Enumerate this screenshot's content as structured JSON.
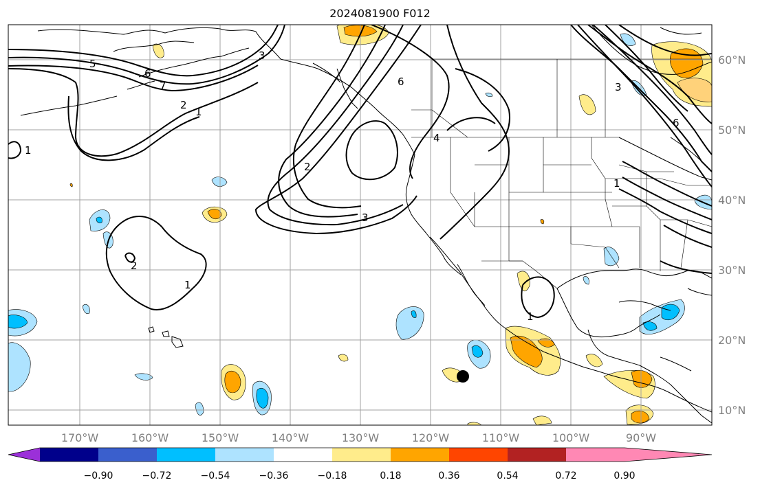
{
  "title": "2024081900 F012",
  "map": {
    "lon_labels": [
      "170°W",
      "160°W",
      "150°W",
      "140°W",
      "130°W",
      "120°W",
      "110°W",
      "100°W",
      "90°W"
    ],
    "lat_labels": [
      "60°N",
      "50°N",
      "40°N",
      "30°N",
      "20°N",
      "10°N"
    ],
    "contour_labels": [
      "5",
      "6",
      "7",
      "2",
      "1",
      "1",
      "2",
      "1",
      "2",
      "3",
      "6",
      "4",
      "3",
      "6",
      "1",
      "3",
      "1"
    ],
    "marker": "storm-center"
  },
  "colorbar": {
    "tick_labels": [
      "−0.90",
      "−0.72",
      "−0.54",
      "−0.36",
      "−0.18",
      "0.18",
      "0.36",
      "0.54",
      "0.72",
      "0.90"
    ],
    "colors": [
      "#9b30d9",
      "#00008b",
      "#3a5fcd",
      "#00bfff",
      "#aee3ff",
      "#ffffff",
      "#ffec8b",
      "#ffa500",
      "#ff4500",
      "#b22222",
      "#ff88b4"
    ]
  }
}
